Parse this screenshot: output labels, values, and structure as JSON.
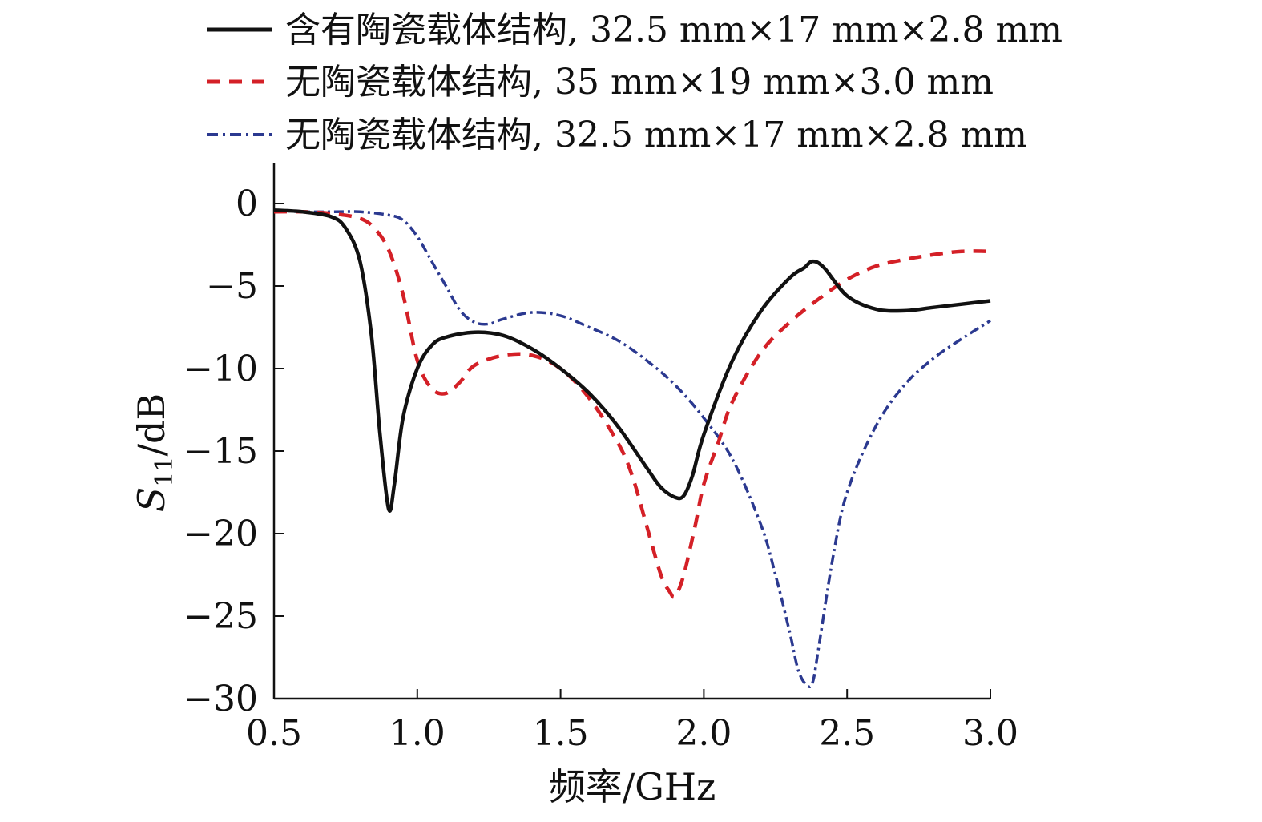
{
  "chart_data": {
    "type": "line",
    "title": "",
    "xlabel": "频率/GHz",
    "ylabel_main": "S",
    "ylabel_sub": "11",
    "ylabel_unit": "/dB",
    "xlim": [
      0.5,
      3.0
    ],
    "ylim": [
      -30,
      2.5
    ],
    "x_ticks": [
      0.5,
      1.0,
      1.5,
      2.0,
      2.5,
      3.0
    ],
    "x_tick_labels": [
      "0.5",
      "1.0",
      "1.5",
      "2.0",
      "2.5",
      "3.0"
    ],
    "y_ticks": [
      0,
      -5,
      -10,
      -15,
      -20,
      -25,
      -30
    ],
    "y_tick_labels": [
      "0",
      "−5",
      "−10",
      "−15",
      "−20",
      "−25",
      "−30"
    ],
    "legend_position": "top",
    "series": [
      {
        "name": "含有陶瓷载体结构, 32.5 mm×17 mm×2.8 mm",
        "color": "#111111",
        "style": "solid",
        "x": [
          0.5,
          0.6,
          0.7,
          0.75,
          0.8,
          0.84,
          0.87,
          0.9,
          0.92,
          0.95,
          1.0,
          1.05,
          1.1,
          1.2,
          1.3,
          1.4,
          1.5,
          1.6,
          1.7,
          1.8,
          1.85,
          1.9,
          1.93,
          1.96,
          2.0,
          2.1,
          2.2,
          2.3,
          2.35,
          2.38,
          2.42,
          2.5,
          2.6,
          2.7,
          2.8,
          2.9,
          3.0
        ],
        "y": [
          -0.4,
          -0.5,
          -0.8,
          -1.5,
          -3.5,
          -8.0,
          -14.0,
          -18.5,
          -17.0,
          -13.0,
          -10.0,
          -8.6,
          -8.1,
          -7.8,
          -8.0,
          -8.8,
          -10.0,
          -11.5,
          -13.5,
          -16.0,
          -17.2,
          -17.8,
          -17.7,
          -16.5,
          -14.0,
          -9.5,
          -6.5,
          -4.5,
          -3.9,
          -3.5,
          -3.9,
          -5.6,
          -6.4,
          -6.5,
          -6.3,
          -6.1,
          -5.9
        ]
      },
      {
        "name": "无陶瓷载体结构, 35 mm×19 mm×3.0 mm",
        "color": "#d42027",
        "style": "dashed",
        "x": [
          0.5,
          0.6,
          0.7,
          0.8,
          0.85,
          0.9,
          0.95,
          1.0,
          1.05,
          1.1,
          1.15,
          1.2,
          1.3,
          1.4,
          1.5,
          1.6,
          1.7,
          1.75,
          1.8,
          1.85,
          1.88,
          1.9,
          1.93,
          1.97,
          2.0,
          2.05,
          2.1,
          2.2,
          2.3,
          2.4,
          2.5,
          2.6,
          2.7,
          2.8,
          2.9,
          3.0
        ],
        "y": [
          -0.5,
          -0.5,
          -0.6,
          -0.9,
          -1.5,
          -2.8,
          -5.5,
          -9.5,
          -11.2,
          -11.5,
          -10.8,
          -9.8,
          -9.2,
          -9.2,
          -10.0,
          -11.8,
          -14.5,
          -16.5,
          -19.5,
          -22.5,
          -23.5,
          -23.8,
          -22.5,
          -19.5,
          -17.0,
          -14.5,
          -12.0,
          -9.0,
          -7.2,
          -5.8,
          -4.6,
          -3.8,
          -3.4,
          -3.1,
          -2.9,
          -2.9
        ]
      },
      {
        "name": "无陶瓷载体结构, 32.5 mm×17 mm×2.8 mm",
        "color": "#2b3990",
        "style": "dashdot",
        "x": [
          0.5,
          0.6,
          0.7,
          0.8,
          0.9,
          0.95,
          1.0,
          1.05,
          1.1,
          1.15,
          1.2,
          1.25,
          1.3,
          1.4,
          1.5,
          1.6,
          1.7,
          1.8,
          1.9,
          2.0,
          2.1,
          2.2,
          2.25,
          2.3,
          2.33,
          2.36,
          2.38,
          2.4,
          2.45,
          2.5,
          2.6,
          2.7,
          2.8,
          2.9,
          3.0
        ],
        "y": [
          -0.4,
          -0.5,
          -0.5,
          -0.5,
          -0.7,
          -1.0,
          -2.0,
          -3.5,
          -5.0,
          -6.5,
          -7.2,
          -7.3,
          -7.0,
          -6.6,
          -6.8,
          -7.5,
          -8.3,
          -9.5,
          -11.0,
          -13.0,
          -15.5,
          -19.5,
          -22.5,
          -26.0,
          -28.3,
          -29.2,
          -29.0,
          -27.0,
          -21.5,
          -17.5,
          -13.5,
          -11.0,
          -9.4,
          -8.2,
          -7.1
        ]
      }
    ]
  }
}
